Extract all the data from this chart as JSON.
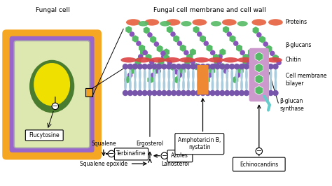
{
  "title_left": "Fungal cell",
  "title_right": "Fungal cell membrane and cell wall",
  "orange_outer": "#f5a623",
  "purple_border": "#9966cc",
  "gray_border": "#aaaaaa",
  "light_green_cell": "#dce8b0",
  "dark_green_nucleus": "#4a7c2f",
  "yellow_nucleus": "#f0e000",
  "label_flucytosine": "Flucytosine",
  "label_squalene": "Squalene",
  "label_squalene_epoxide": "Squalene epoxide",
  "label_terbinafine": "Terbinafine",
  "label_lanosterol": "Lanosterol",
  "label_ergosterol": "Ergosterol",
  "label_azoles": "Azoles",
  "label_amphotericin": "Amphotericin B,\nnystatin",
  "label_echinocandins": "Echinocandins",
  "label_beta_glucan_synthase": "β-glucan\nsynthase",
  "label_proteins": "Proteins",
  "label_beta_glucans": "β-glucans",
  "label_chitin": "Chitin",
  "label_cell_membrane": "Cell membrane\nbilayer",
  "protein_color": "#e87050",
  "green_color": "#55bb66",
  "purple_bead": "#8855bb",
  "chitin_color": "#dd4444",
  "lipid_head_color": "#7755aa",
  "lipid_tail_color": "#aaccdd",
  "orange_channel": "#ee8833",
  "pink_synthase": "#cc99cc"
}
